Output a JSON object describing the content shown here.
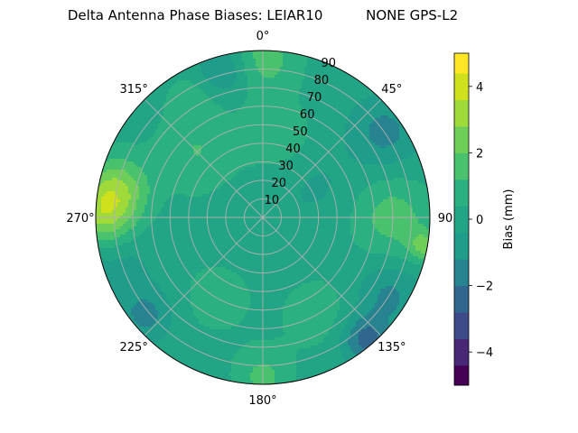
{
  "chart_data": {
    "type": "polar-contour",
    "title": "Delta Antenna Phase Biases: LEIAR10          NONE GPS-L2",
    "angular_ticks": [
      "0°",
      "45°",
      "90",
      "135°",
      "180°",
      "225°",
      "270°",
      "315°"
    ],
    "radial_ticks": [
      "10",
      "20",
      "30",
      "40",
      "50",
      "60",
      "70",
      "80",
      "90"
    ],
    "radial_values": [
      10,
      20,
      30,
      40,
      50,
      60,
      70,
      80,
      90
    ],
    "rlim": [
      0,
      90
    ],
    "grid": true,
    "colorbar": {
      "label": "Bias (mm)",
      "ticks": [
        "−4",
        "−2",
        "0",
        "2",
        "4"
      ],
      "tick_values": [
        -4,
        -2,
        0,
        2,
        4
      ],
      "range": [
        -5,
        5
      ],
      "levels": [
        -5,
        -4.4,
        -3.6,
        -2.8,
        -2,
        -1.2,
        -0.4,
        0.4,
        1.2,
        2,
        2.8,
        3.6,
        4.4,
        5
      ],
      "colors": [
        "#440154",
        "#482777",
        "#3f4a8a",
        "#31678e",
        "#26838f",
        "#1f9d8a",
        "#21a585",
        "#2bb07f",
        "#49c16d",
        "#6ece58",
        "#9fda3a",
        "#cfe11c",
        "#fde725"
      ]
    },
    "field": {
      "description_units": "azimuth (deg, clockwise from north), zenith angle (deg)",
      "features": [
        {
          "az": 0,
          "zen": 85,
          "value": 1.6,
          "sigma": 14
        },
        {
          "az": 345,
          "zen": 82,
          "value": -1.6,
          "sigma": 10
        },
        {
          "az": 55,
          "zen": 80,
          "value": -1.5,
          "sigma": 13
        },
        {
          "az": 270,
          "zen": 86,
          "value": 3.0,
          "sigma": 13
        },
        {
          "az": 282,
          "zen": 80,
          "value": 2.2,
          "sigma": 12
        },
        {
          "az": 255,
          "zen": 84,
          "value": -1.0,
          "sigma": 15
        },
        {
          "az": 90,
          "zen": 70,
          "value": 1.6,
          "sigma": 15
        },
        {
          "az": 100,
          "zen": 88,
          "value": 2.0,
          "sigma": 6
        },
        {
          "az": 140,
          "zen": 86,
          "value": -2.4,
          "sigma": 9
        },
        {
          "az": 122,
          "zen": 80,
          "value": -1.4,
          "sigma": 12
        },
        {
          "az": 180,
          "zen": 86,
          "value": 1.4,
          "sigma": 11
        },
        {
          "az": 230,
          "zen": 82,
          "value": -1.5,
          "sigma": 10
        },
        {
          "az": 315,
          "zen": 50,
          "value": 1.2,
          "sigma": 16
        },
        {
          "az": 10,
          "zen": 45,
          "value": 1.0,
          "sigma": 13
        },
        {
          "az": 150,
          "zen": 60,
          "value": 0.8,
          "sigma": 15
        },
        {
          "az": 210,
          "zen": 50,
          "value": 0.7,
          "sigma": 16
        },
        {
          "az": 60,
          "zen": 35,
          "value": -0.5,
          "sigma": 14
        },
        {
          "az": 330,
          "zen": 75,
          "value": 0.8,
          "sigma": 10
        },
        {
          "az": 0,
          "zen": 0,
          "value": -0.3,
          "sigma": 14
        }
      ]
    }
  }
}
